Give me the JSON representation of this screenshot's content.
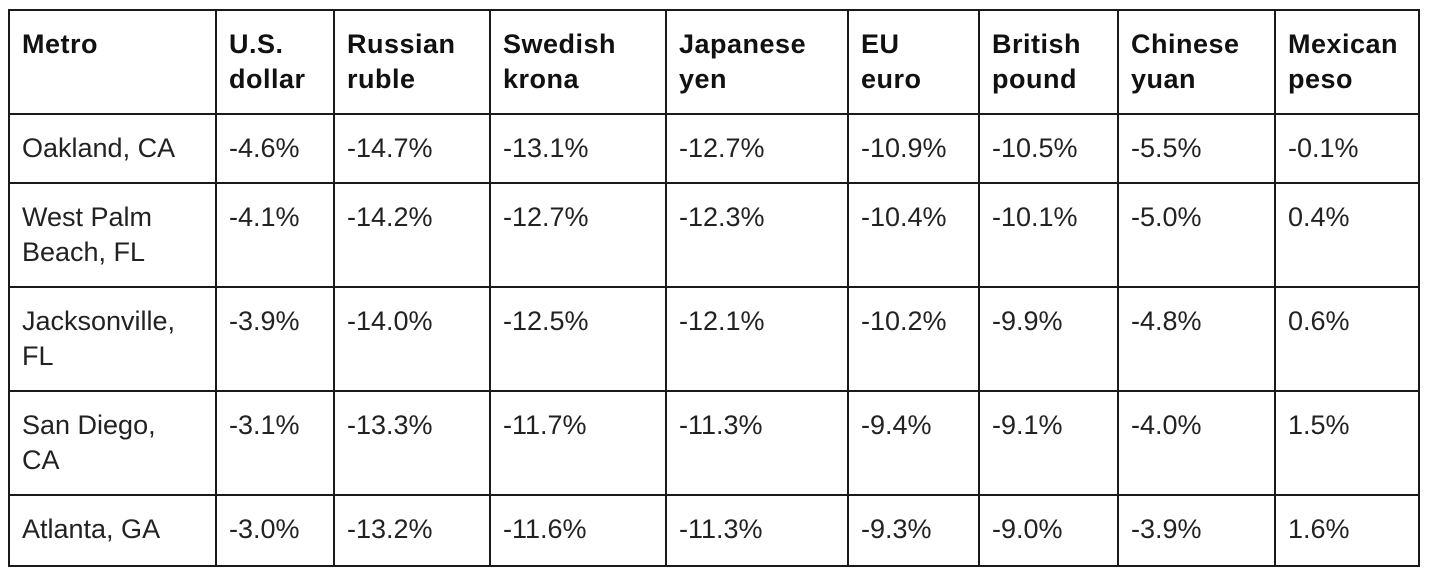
{
  "table": {
    "headers": [
      "Metro",
      "U.S. dollar",
      "Russian ruble",
      "Swedish krona",
      "Japanese yen",
      "EU euro",
      "British pound",
      "Chinese yuan",
      "Mexican peso"
    ],
    "header_lines": [
      [
        "Metro",
        ""
      ],
      [
        "U.S.",
        "dollar"
      ],
      [
        "Russian",
        "ruble"
      ],
      [
        "Swedish",
        "krona"
      ],
      [
        "Japanese",
        "yen"
      ],
      [
        "EU",
        "euro"
      ],
      [
        "British",
        "pound"
      ],
      [
        "Chinese",
        "yuan"
      ],
      [
        "Mexican",
        "peso"
      ]
    ],
    "rows": [
      {
        "metro": "Oakland, CA",
        "metro_lines": [
          "Oakland, CA",
          ""
        ],
        "values": [
          "-4.6%",
          "-14.7%",
          "-13.1%",
          "-12.7%",
          "-10.9%",
          "-10.5%",
          "-5.5%",
          "-0.1%"
        ]
      },
      {
        "metro": "West Palm Beach, FL",
        "metro_lines": [
          "West Palm",
          "Beach, FL"
        ],
        "values": [
          "-4.1%",
          "-14.2%",
          "-12.7%",
          "-12.3%",
          "-10.4%",
          "-10.1%",
          "-5.0%",
          "0.4%"
        ]
      },
      {
        "metro": "Jacksonville, FL",
        "metro_lines": [
          "Jacksonville,",
          "FL"
        ],
        "values": [
          "-3.9%",
          "-14.0%",
          "-12.5%",
          "-12.1%",
          "-10.2%",
          "-9.9%",
          "-4.8%",
          "0.6%"
        ]
      },
      {
        "metro": "San Diego, CA",
        "metro_lines": [
          "San Diego,",
          "CA"
        ],
        "values": [
          "-3.1%",
          "-13.3%",
          "-11.7%",
          "-11.3%",
          "-9.4%",
          "-9.1%",
          "-4.0%",
          "1.5%"
        ]
      },
      {
        "metro": "Atlanta, GA",
        "metro_lines": [
          "Atlanta, GA",
          ""
        ],
        "values": [
          "-3.0%",
          "-13.2%",
          "-11.6%",
          "-11.3%",
          "-9.3%",
          "-9.0%",
          "-3.9%",
          "1.6%"
        ]
      }
    ]
  }
}
